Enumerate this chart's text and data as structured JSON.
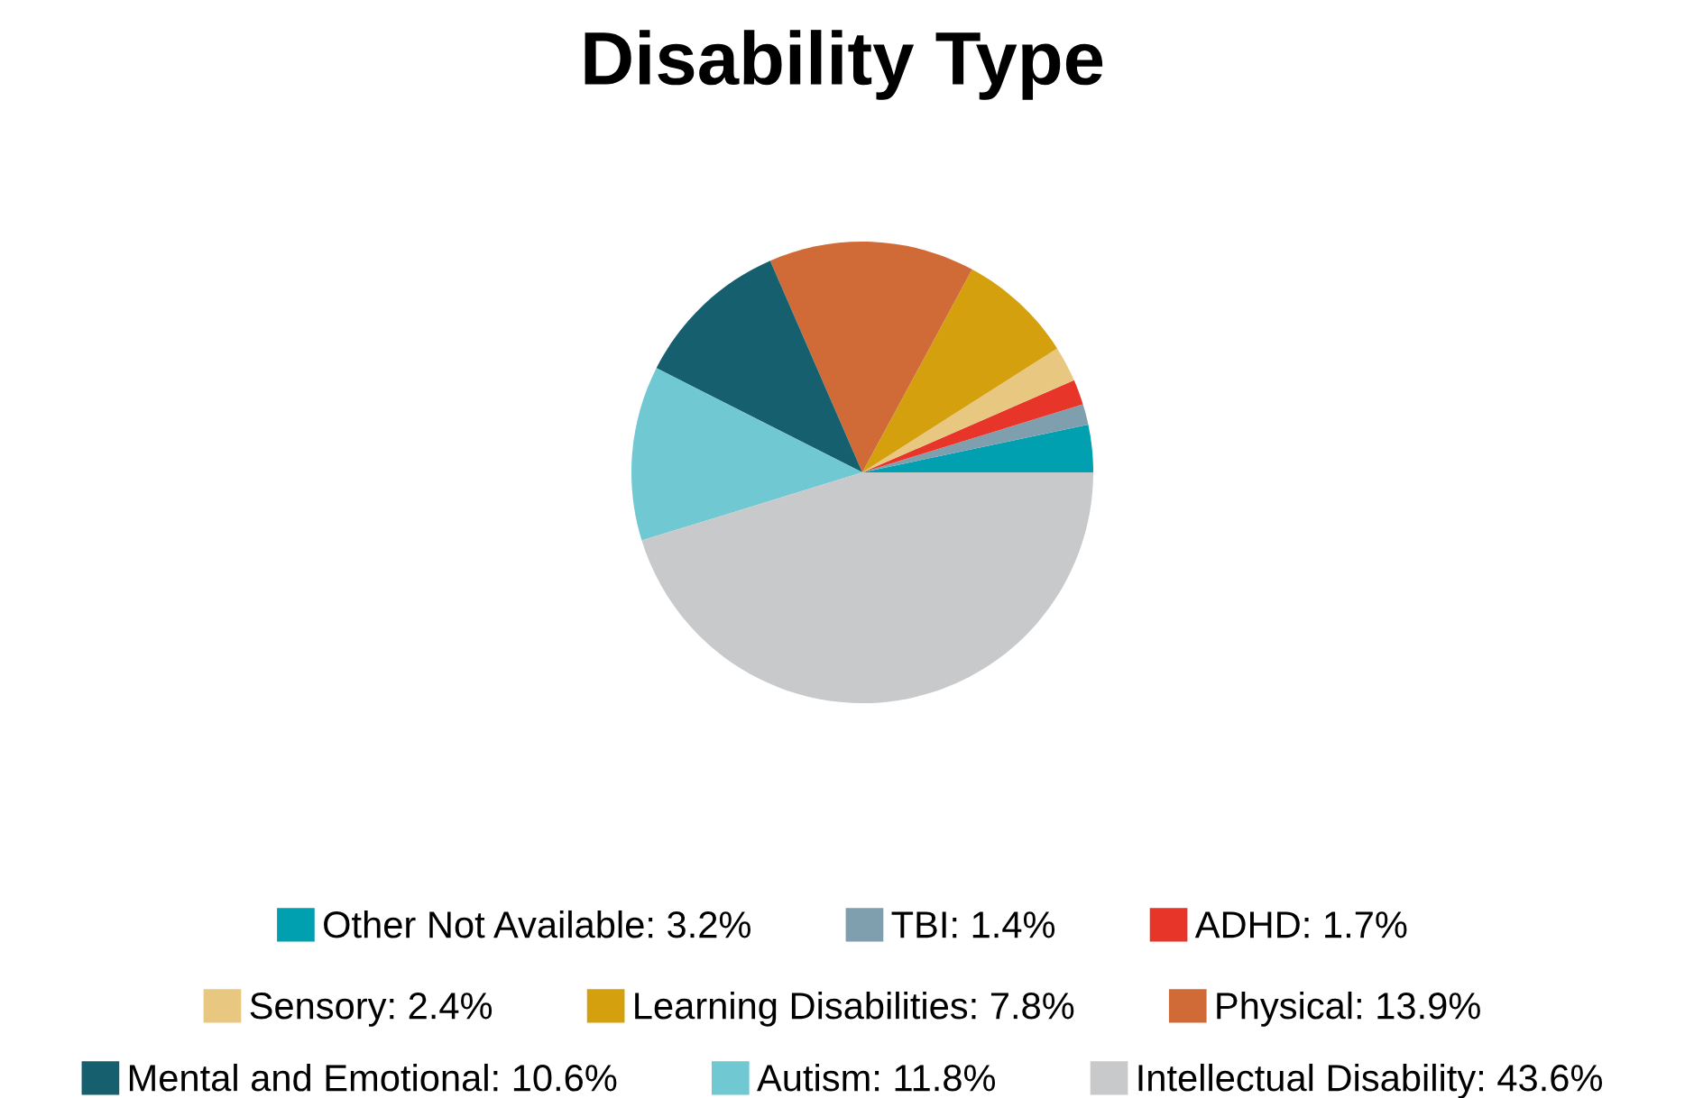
{
  "chart_data": {
    "type": "pie",
    "title": "Disability Type",
    "categories": [
      "Other Not Available: 3.2%",
      "TBI: 1.4%",
      "ADHD: 1.7%",
      "Sensory: 2.4%",
      "Learning Disabilities: 7.8%",
      "Physical: 13.9%",
      "Mental and Emotional: 10.6%",
      "Autism: 11.8%",
      "Intellectual Disability: 43.6%"
    ],
    "values": [
      3.2,
      1.4,
      1.7,
      2.4,
      7.8,
      13.9,
      10.6,
      11.8,
      43.6
    ],
    "colors": [
      "#00a0b0",
      "#7f9faf",
      "#e8352a",
      "#e8c880",
      "#d4a00e",
      "#d06b38",
      "#155f6e",
      "#70c8d2",
      "#c8c9cb"
    ],
    "legend": "bottom"
  }
}
